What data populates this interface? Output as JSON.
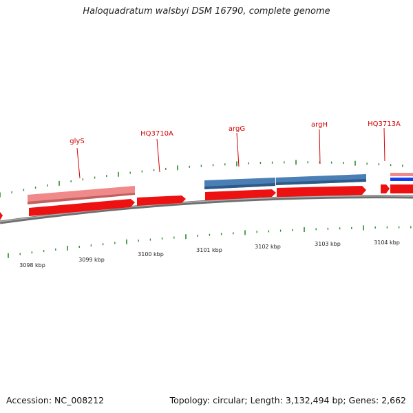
{
  "header": {
    "title": "Haloquadratum walsbyi DSM 16790, complete genome"
  },
  "footer": {
    "accession": "Accession: NC_008212",
    "topology": "Topology: circular; Length: 3,132,494 bp; Genes: 2,662"
  },
  "colors": {
    "cds": "#ee1111",
    "cds_light": "#f08a8a",
    "gene_blue": "#4a7fb5",
    "strong_blue": "#1a3ee8",
    "tick": "#2a8a2a",
    "backbone": "#8a8a8a",
    "label": "#d40000"
  },
  "gene_labels": [
    {
      "name": "glyS"
    },
    {
      "name": "HQ3710A"
    },
    {
      "name": "argG"
    },
    {
      "name": "argH"
    },
    {
      "name": "HQ3713A"
    }
  ],
  "kbp_labels": [
    {
      "text": "3098 kbp"
    },
    {
      "text": "3099 kbp"
    },
    {
      "text": "3100 kbp"
    },
    {
      "text": "3101 kbp"
    },
    {
      "text": "3102 kbp"
    },
    {
      "text": "3103 kbp"
    },
    {
      "text": "3104 kbp"
    }
  ]
}
